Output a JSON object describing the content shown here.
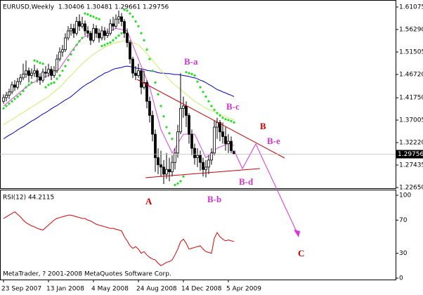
{
  "chart_data": {
    "type": "candlestick",
    "title": "EURUSD,Weekly  1.30406 1.30481 1.29661 1.29756",
    "categories": [
      "23 Sep 2007",
      null,
      null,
      null,
      null,
      null,
      null,
      null,
      null,
      null,
      null,
      null,
      null,
      null,
      null,
      null,
      "13 Jan 2008",
      null,
      null,
      null,
      null,
      null,
      null,
      null,
      null,
      null,
      null,
      null,
      null,
      null,
      null,
      null,
      "4 May 2008",
      null,
      null,
      null,
      null,
      null,
      null,
      null,
      null,
      null,
      null,
      null,
      null,
      null,
      null,
      null,
      "24 Aug 2008",
      null,
      null,
      null,
      null,
      null,
      null,
      null,
      null,
      null,
      null,
      null,
      null,
      null,
      null,
      null,
      "14 Dec 2008",
      null,
      null,
      null,
      null,
      null,
      null,
      null,
      null,
      null,
      null,
      null,
      null,
      null,
      null,
      null,
      "5 Apr 2009",
      null,
      null
    ],
    "candles": [
      [
        1.41,
        1.425,
        1.405,
        1.418
      ],
      [
        1.418,
        1.43,
        1.41,
        1.423
      ],
      [
        1.423,
        1.437,
        1.415,
        1.43
      ],
      [
        1.43,
        1.452,
        1.425,
        1.445
      ],
      [
        1.445,
        1.455,
        1.432,
        1.44
      ],
      [
        1.44,
        1.46,
        1.435,
        1.452
      ],
      [
        1.452,
        1.468,
        1.445,
        1.46
      ],
      [
        1.46,
        1.49,
        1.455,
        1.468
      ],
      [
        1.468,
        1.497,
        1.46,
        1.475
      ],
      [
        1.475,
        1.482,
        1.45,
        1.465
      ],
      [
        1.465,
        1.48,
        1.458,
        1.47
      ],
      [
        1.47,
        1.488,
        1.462,
        1.475
      ],
      [
        1.475,
        1.48,
        1.45,
        1.462
      ],
      [
        1.462,
        1.47,
        1.445,
        1.455
      ],
      [
        1.455,
        1.48,
        1.45,
        1.472
      ],
      [
        1.472,
        1.485,
        1.46,
        1.47
      ],
      [
        1.47,
        1.49,
        1.462,
        1.478
      ],
      [
        1.478,
        1.485,
        1.455,
        1.465
      ],
      [
        1.465,
        1.485,
        1.46,
        1.475
      ],
      [
        1.475,
        1.51,
        1.47,
        1.5
      ],
      [
        1.5,
        1.525,
        1.495,
        1.515
      ],
      [
        1.515,
        1.53,
        1.505,
        1.52
      ],
      [
        1.52,
        1.555,
        1.515,
        1.545
      ],
      [
        1.545,
        1.57,
        1.54,
        1.56
      ],
      [
        1.56,
        1.575,
        1.55,
        1.565
      ],
      [
        1.565,
        1.575,
        1.545,
        1.555
      ],
      [
        1.555,
        1.59,
        1.55,
        1.58
      ],
      [
        1.58,
        1.595,
        1.56,
        1.57
      ],
      [
        1.57,
        1.59,
        1.565,
        1.575
      ],
      [
        1.575,
        1.582,
        1.55,
        1.56
      ],
      [
        1.56,
        1.57,
        1.545,
        1.555
      ],
      [
        1.555,
        1.56,
        1.53,
        1.54
      ],
      [
        1.54,
        1.575,
        1.535,
        1.565
      ],
      [
        1.565,
        1.572,
        1.545,
        1.555
      ],
      [
        1.555,
        1.565,
        1.535,
        1.545
      ],
      [
        1.545,
        1.57,
        1.54,
        1.56
      ],
      [
        1.56,
        1.568,
        1.54,
        1.55
      ],
      [
        1.55,
        1.565,
        1.545,
        1.555
      ],
      [
        1.555,
        1.585,
        1.55,
        1.575
      ],
      [
        1.575,
        1.59,
        1.56,
        1.57
      ],
      [
        1.57,
        1.595,
        1.565,
        1.585
      ],
      [
        1.585,
        1.603,
        1.575,
        1.59
      ],
      [
        1.59,
        1.598,
        1.57,
        1.58
      ],
      [
        1.58,
        1.585,
        1.545,
        1.555
      ],
      [
        1.555,
        1.565,
        1.525,
        1.535
      ],
      [
        1.535,
        1.54,
        1.49,
        1.5
      ],
      [
        1.5,
        1.505,
        1.46,
        1.47
      ],
      [
        1.47,
        1.485,
        1.455,
        1.465
      ],
      [
        1.465,
        1.49,
        1.46,
        1.475
      ],
      [
        1.475,
        1.48,
        1.425,
        1.44
      ],
      [
        1.44,
        1.475,
        1.435,
        1.45
      ],
      [
        1.45,
        1.455,
        1.395,
        1.41
      ],
      [
        1.41,
        1.42,
        1.365,
        1.38
      ],
      [
        1.38,
        1.39,
        1.325,
        1.34
      ],
      [
        1.34,
        1.35,
        1.26,
        1.29
      ],
      [
        1.29,
        1.31,
        1.255,
        1.275
      ],
      [
        1.275,
        1.305,
        1.25,
        1.27
      ],
      [
        1.27,
        1.285,
        1.234,
        1.255
      ],
      [
        1.255,
        1.3,
        1.245,
        1.265
      ],
      [
        1.265,
        1.29,
        1.24,
        1.26
      ],
      [
        1.26,
        1.295,
        1.25,
        1.28
      ],
      [
        1.28,
        1.31,
        1.265,
        1.3
      ],
      [
        1.3,
        1.36,
        1.29,
        1.345
      ],
      [
        1.345,
        1.47,
        1.34,
        1.395
      ],
      [
        1.395,
        1.42,
        1.375,
        1.4
      ],
      [
        1.4,
        1.41,
        1.355,
        1.38
      ],
      [
        1.38,
        1.385,
        1.32,
        1.34
      ],
      [
        1.34,
        1.35,
        1.295,
        1.31
      ],
      [
        1.31,
        1.32,
        1.275,
        1.29
      ],
      [
        1.29,
        1.31,
        1.27,
        1.295
      ],
      [
        1.295,
        1.305,
        1.262,
        1.28
      ],
      [
        1.28,
        1.29,
        1.25,
        1.265
      ],
      [
        1.265,
        1.285,
        1.248,
        1.27
      ],
      [
        1.27,
        1.295,
        1.255,
        1.285
      ],
      [
        1.285,
        1.31,
        1.275,
        1.3
      ],
      [
        1.3,
        1.37,
        1.295,
        1.355
      ],
      [
        1.355,
        1.375,
        1.33,
        1.365
      ],
      [
        1.365,
        1.37,
        1.325,
        1.345
      ],
      [
        1.345,
        1.365,
        1.32,
        1.335
      ],
      [
        1.335,
        1.355,
        1.305,
        1.32
      ],
      [
        1.32,
        1.34,
        1.3,
        1.325
      ],
      [
        1.325,
        1.335,
        1.3,
        1.305
      ],
      [
        1.30406,
        1.30481,
        1.29661,
        1.29756
      ]
    ],
    "ylim": [
      1.225,
      1.6242
    ],
    "yticks": [
      1.61075,
      {
        "value": 1.5629,
        "label": "1.56290"
      },
      1.51505,
      {
        "value": 1.4672,
        "label": "1.46720"
      },
      {
        "value": 1.4175,
        "label": "1.41750"
      },
      1.37005,
      {
        "value": 1.3222,
        "label": "1.32220"
      },
      1.27435,
      {
        "value": 1.2265,
        "label": "1.22650"
      }
    ],
    "overlays": [
      {
        "type": "line",
        "color": "#0000cc",
        "values": [
          1.33,
          1.334,
          1.338,
          1.341,
          1.345,
          1.349,
          1.353,
          1.356,
          1.36,
          1.364,
          1.368,
          1.371,
          1.375,
          1.379,
          1.383,
          1.386,
          1.39,
          1.394,
          1.398,
          1.401,
          1.405,
          1.409,
          1.413,
          1.416,
          1.42,
          1.425,
          1.43,
          1.435,
          1.44,
          1.444,
          1.448,
          1.451,
          1.455,
          1.459,
          1.463,
          1.466,
          1.47,
          1.472,
          1.475,
          1.478,
          1.48,
          1.481,
          1.482,
          1.484,
          1.485,
          1.484,
          1.483,
          1.481,
          1.48,
          1.479,
          1.478,
          1.476,
          1.475,
          1.474,
          1.473,
          1.471,
          1.47,
          1.47,
          1.469,
          1.469,
          1.468,
          1.467,
          1.467,
          1.466,
          1.465,
          1.464,
          1.463,
          1.461,
          1.46,
          1.458,
          1.455,
          1.453,
          1.45,
          1.446,
          1.443,
          1.439,
          1.435,
          1.433,
          1.43,
          1.428,
          1.425,
          1.423,
          1.42
        ]
      },
      {
        "type": "line",
        "color": "#ccee66",
        "values": [
          1.36,
          1.364,
          1.368,
          1.371,
          1.375,
          1.379,
          1.383,
          1.386,
          1.39,
          1.394,
          1.398,
          1.401,
          1.405,
          1.409,
          1.413,
          1.416,
          1.42,
          1.425,
          1.43,
          1.435,
          1.44,
          1.446,
          1.453,
          1.459,
          1.465,
          1.471,
          1.478,
          1.484,
          1.49,
          1.495,
          1.5,
          1.505,
          1.51,
          1.514,
          1.518,
          1.521,
          1.525,
          1.528,
          1.53,
          1.533,
          1.535,
          1.536,
          1.538,
          1.539,
          1.54,
          1.538,
          1.535,
          1.533,
          1.53,
          1.524,
          1.518,
          1.511,
          1.505,
          1.498,
          1.49,
          1.483,
          1.475,
          1.469,
          1.463,
          1.456,
          1.45,
          1.445,
          1.44,
          1.435,
          1.43,
          1.425,
          1.42,
          1.415,
          1.41,
          1.406,
          1.403,
          1.399,
          1.395,
          1.393,
          1.39,
          1.388,
          1.385,
          1.383,
          1.38,
          1.378,
          1.375,
          1.373,
          1.371
        ]
      },
      {
        "type": "line",
        "color": "#dd44dd",
        "values": [
          1.4,
          1.405,
          1.41,
          1.415,
          1.42,
          1.425,
          1.43,
          1.435,
          1.44,
          1.444,
          1.448,
          1.451,
          1.455,
          1.458,
          1.46,
          1.463,
          1.465,
          1.469,
          1.473,
          1.476,
          1.48,
          1.489,
          1.498,
          1.506,
          1.515,
          1.523,
          1.53,
          1.538,
          1.545,
          1.548,
          1.55,
          1.553,
          1.555,
          1.555,
          1.555,
          1.555,
          1.555,
          1.558,
          1.56,
          1.563,
          1.565,
          1.564,
          1.563,
          1.561,
          1.56,
          1.545,
          1.53,
          1.515,
          1.5,
          1.485,
          1.47,
          1.455,
          1.44,
          1.418,
          1.395,
          1.373,
          1.35,
          1.338,
          1.325,
          1.313,
          1.3,
          1.31,
          1.32,
          1.33,
          1.34,
          1.34,
          1.34,
          1.34,
          1.34,
          1.328,
          1.315,
          1.303,
          1.29,
          1.295,
          1.3,
          1.305,
          1.31,
          1.313,
          1.315,
          1.318,
          1.32,
          1.318,
          1.316
        ]
      }
    ],
    "sar": {
      "type": "scatter",
      "color": "#22dd22",
      "values": [
        1.395,
        1.4,
        1.405,
        1.41,
        1.415,
        1.42,
        1.425,
        1.432,
        1.44,
        1.445,
        1.45,
        1.497,
        1.495,
        1.492,
        1.49,
        1.44,
        1.445,
        1.448,
        1.45,
        1.458,
        1.465,
        1.475,
        1.485,
        1.498,
        1.51,
        1.52,
        1.53,
        1.538,
        1.545,
        1.597,
        1.595,
        1.592,
        1.59,
        1.587,
        1.585,
        1.528,
        1.53,
        1.533,
        1.535,
        1.54,
        1.545,
        1.55,
        1.555,
        1.605,
        1.603,
        1.597,
        1.59,
        1.58,
        1.57,
        1.555,
        1.54,
        1.52,
        1.5,
        1.475,
        1.45,
        1.425,
        1.4,
        1.378,
        1.355,
        1.342,
        1.33,
        1.232,
        1.235,
        1.24,
        1.25,
        1.472,
        1.47,
        1.468,
        1.465,
        1.452,
        1.44,
        1.43,
        1.42,
        1.41,
        1.4,
        1.392,
        1.385,
        1.38,
        1.375,
        1.372,
        1.37,
        1.368,
        1.365
      ]
    },
    "indicator": {
      "type": "line",
      "label": "RSI(12) 44.2115",
      "color": "#dd0000",
      "ylim": [
        -1.7,
        105.9
      ],
      "yticks": [
        0,
        30,
        70,
        100
      ],
      "values": [
        72,
        74,
        76,
        78,
        80,
        77,
        74,
        70,
        67,
        65,
        63,
        62,
        60,
        59,
        58,
        61,
        64,
        67,
        70,
        72,
        73,
        74,
        75,
        76,
        76,
        75,
        74,
        73,
        72,
        72,
        70,
        69,
        67,
        65,
        64,
        63,
        62,
        61,
        60,
        60,
        59,
        58,
        57,
        50,
        45,
        39,
        36,
        38,
        35,
        30,
        32,
        28,
        25,
        23,
        22,
        18,
        15,
        17,
        19,
        20,
        22,
        28,
        35,
        44,
        47,
        42,
        35,
        36,
        37,
        38,
        39,
        35,
        32,
        31,
        30,
        48,
        55,
        50,
        47,
        45,
        46,
        45,
        44.2115
      ]
    },
    "annotations": [
      {
        "text": "B-a",
        "color": "#cc33cc"
      },
      {
        "text": "B-c",
        "color": "#cc33cc"
      },
      {
        "text": "B",
        "color": "#cc0000"
      },
      {
        "text": "B-e",
        "color": "#cc33cc"
      },
      {
        "text": "B-d",
        "color": "#cc33cc"
      },
      {
        "text": "A",
        "color": "#cc0000"
      },
      {
        "text": "B-b",
        "color": "#cc33cc"
      },
      {
        "text": "C",
        "color": "#cc0000"
      }
    ],
    "footer": "MetaTrader, ? 2001-2008 MetaQuotes Software Corp."
  }
}
